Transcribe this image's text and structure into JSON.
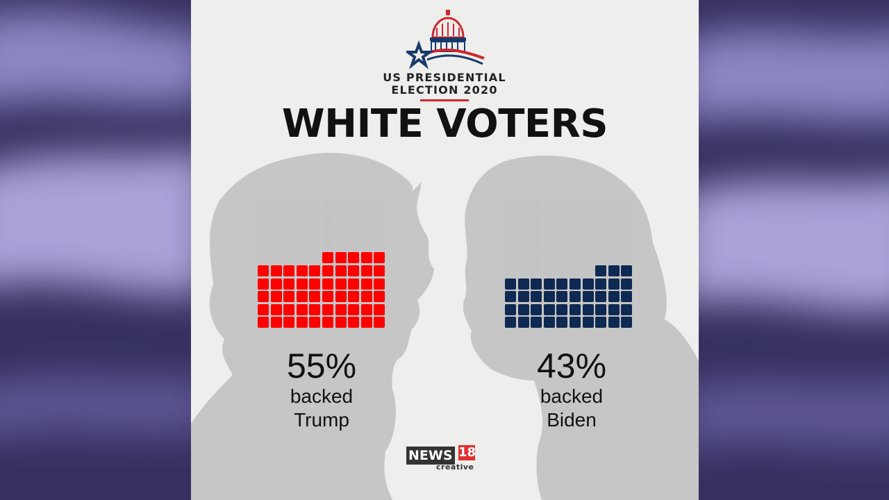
{
  "event": {
    "line1": "US PRESIDENTIAL",
    "line2": "ELECTION 2020"
  },
  "headline": "WHITE VOTERS",
  "colors": {
    "trump": "#ff0000",
    "biden": "#0f2a52",
    "empty": "#c4c4c4"
  },
  "candidates": [
    {
      "percent_value": 55,
      "percent_label": "55%",
      "line1": "backed",
      "line2": "Trump"
    },
    {
      "percent_value": 43,
      "percent_label": "43%",
      "line1": "backed",
      "line2": "Biden"
    }
  ],
  "brand": {
    "name": "NEWS",
    "number": "18",
    "sub": "creative"
  },
  "icons": {
    "logo": "capitol-star-icon"
  }
}
